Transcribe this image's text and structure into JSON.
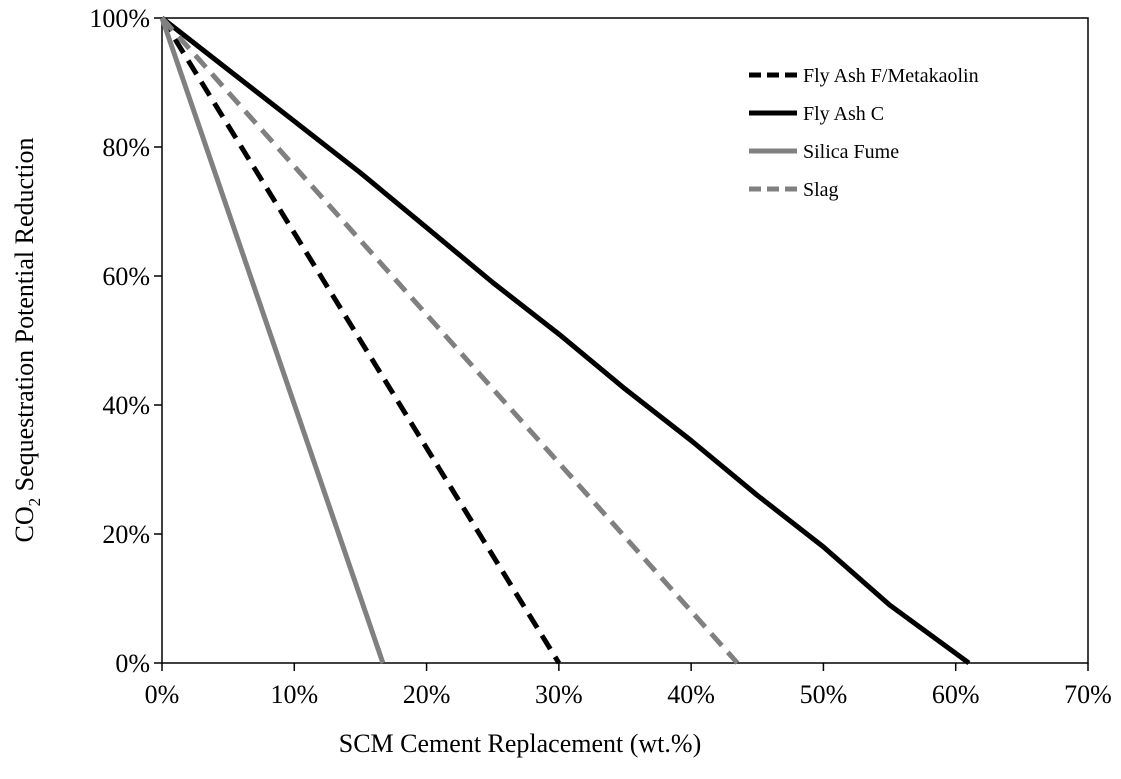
{
  "chart_data": {
    "type": "line",
    "title": "",
    "xlabel": "SCM Cement Replacement (wt.%)",
    "ylabel_main": "CO",
    "ylabel_sub": "2",
    "ylabel_rest": " Sequestration  Potential  Reduction",
    "xlim": [
      0,
      70
    ],
    "ylim": [
      0,
      100
    ],
    "xticks": [
      0,
      10,
      20,
      30,
      40,
      50,
      60,
      70
    ],
    "yticks": [
      0,
      20,
      40,
      60,
      80,
      100
    ],
    "xtick_labels": [
      "0%",
      "10%",
      "20%",
      "30%",
      "40%",
      "50%",
      "60%",
      "70%"
    ],
    "ytick_labels": [
      "0%",
      "20%",
      "40%",
      "60%",
      "80%",
      "100%"
    ],
    "grid": false,
    "legend_position": "top-right",
    "series": [
      {
        "name": "Fly Ash F/Metakaolin",
        "color": "#000000",
        "dashed": true,
        "points": [
          [
            0,
            100
          ],
          [
            30,
            0
          ]
        ]
      },
      {
        "name": "Fly Ash C",
        "color": "#000000",
        "dashed": false,
        "points": [
          [
            0,
            100
          ],
          [
            5,
            92
          ],
          [
            10,
            84
          ],
          [
            15,
            76
          ],
          [
            20,
            67.5
          ],
          [
            25,
            59
          ],
          [
            30,
            51
          ],
          [
            35,
            42.5
          ],
          [
            40,
            34.5
          ],
          [
            45,
            26
          ],
          [
            50,
            18
          ],
          [
            55,
            9
          ],
          [
            61,
            0
          ]
        ]
      },
      {
        "name": "Silica Fume",
        "color": "#808080",
        "dashed": false,
        "points": [
          [
            0,
            100
          ],
          [
            16.7,
            0
          ]
        ]
      },
      {
        "name": "Slag",
        "color": "#808080",
        "dashed": true,
        "points": [
          [
            0,
            100
          ],
          [
            43.5,
            0
          ]
        ]
      }
    ]
  }
}
